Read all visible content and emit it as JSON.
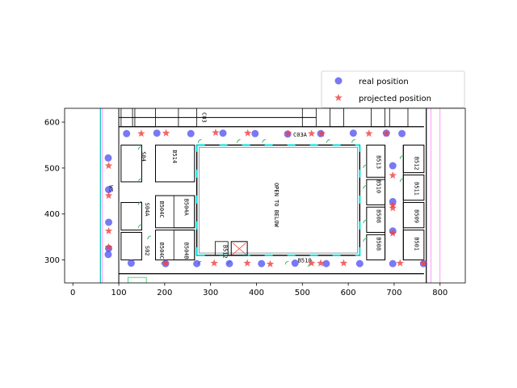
{
  "chart_data": {
    "type": "scatter",
    "title": "",
    "xlabel": "",
    "ylabel": "",
    "xlim": [
      -18,
      855
    ],
    "ylim": [
      250,
      630
    ],
    "xticks": [
      0,
      100,
      200,
      300,
      400,
      500,
      600,
      700,
      800
    ],
    "yticks": [
      300,
      400,
      500,
      600
    ],
    "grid": false,
    "legend": {
      "placement": "top-right",
      "outside": true
    },
    "background": "floor-plan",
    "colors": {
      "real": "#4040f0",
      "projected": "#f04040"
    },
    "series": [
      {
        "name": "real position",
        "marker": "circle",
        "points": [
          [
            117,
            575
          ],
          [
            183,
            576
          ],
          [
            257,
            575
          ],
          [
            327,
            576
          ],
          [
            397,
            575
          ],
          [
            468,
            574
          ],
          [
            540,
            575
          ],
          [
            611,
            576
          ],
          [
            683,
            576
          ],
          [
            717,
            575
          ],
          [
            77,
            522
          ],
          [
            78,
            453
          ],
          [
            78,
            382
          ],
          [
            78,
            325
          ],
          [
            77,
            312
          ],
          [
            127,
            293
          ],
          [
            202,
            292
          ],
          [
            270,
            292
          ],
          [
            341,
            292
          ],
          [
            411,
            292
          ],
          [
            484,
            293
          ],
          [
            552,
            292
          ],
          [
            625,
            292
          ],
          [
            697,
            292
          ],
          [
            764,
            292
          ],
          [
            697,
            505
          ],
          [
            697,
            427
          ],
          [
            697,
            363
          ]
        ]
      },
      {
        "name": "projected position",
        "marker": "star",
        "points": [
          [
            149,
            575
          ],
          [
            203,
            576
          ],
          [
            311,
            577
          ],
          [
            381,
            576
          ],
          [
            469,
            575
          ],
          [
            520,
            575
          ],
          [
            542,
            575
          ],
          [
            645,
            575
          ],
          [
            683,
            575
          ],
          [
            78,
            505
          ],
          [
            78,
            440
          ],
          [
            78,
            363
          ],
          [
            78,
            328
          ],
          [
            202,
            293
          ],
          [
            308,
            293
          ],
          [
            380,
            293
          ],
          [
            430,
            291
          ],
          [
            520,
            293
          ],
          [
            540,
            293
          ],
          [
            590,
            293
          ],
          [
            713,
            293
          ],
          [
            764,
            293
          ],
          [
            697,
            484
          ],
          [
            697,
            413
          ],
          [
            697,
            419
          ],
          [
            697,
            358
          ]
        ]
      }
    ],
    "floor_plan": {
      "room_labels": [
        {
          "text": "S04",
          "x": 150,
          "y": 525,
          "rot": 90
        },
        {
          "text": "B514",
          "x": 218,
          "y": 525,
          "rot": 90
        },
        {
          "text": "S04A",
          "x": 158,
          "y": 410,
          "rot": 90
        },
        {
          "text": "B504C",
          "x": 190,
          "y": 410,
          "rot": 90
        },
        {
          "text": "B504A",
          "x": 243,
          "y": 415,
          "rot": 90
        },
        {
          "text": "S02",
          "x": 158,
          "y": 320,
          "rot": 90
        },
        {
          "text": "B504C",
          "x": 190,
          "y": 320,
          "rot": 90
        },
        {
          "text": "B504B",
          "x": 243,
          "y": 320,
          "rot": 90
        },
        {
          "text": "B512",
          "x": 328,
          "y": 318,
          "rot": 90
        },
        {
          "text": "OPEN TO BELOW",
          "x": 440,
          "y": 420,
          "rot": 90
        },
        {
          "text": "B510",
          "x": 505,
          "y": 295,
          "rot": 0
        },
        {
          "text": "B513",
          "x": 662,
          "y": 513,
          "rot": 90
        },
        {
          "text": "B510",
          "x": 662,
          "y": 460,
          "rot": 90
        },
        {
          "text": "B508",
          "x": 662,
          "y": 395,
          "rot": 90
        },
        {
          "text": "B508",
          "x": 662,
          "y": 335,
          "rot": 90
        },
        {
          "text": "B512",
          "x": 745,
          "y": 510,
          "rot": 90
        },
        {
          "text": "B511",
          "x": 745,
          "y": 455,
          "rot": 90
        },
        {
          "text": "B509",
          "x": 745,
          "y": 395,
          "rot": 90
        },
        {
          "text": "B501",
          "x": 745,
          "y": 335,
          "rot": 90
        },
        {
          "text": "WS",
          "x": 79,
          "y": 455,
          "rot": 90
        },
        {
          "text": "C03",
          "x": 282,
          "y": 610,
          "rot": 90
        },
        {
          "text": "C03A",
          "x": 495,
          "y": 568,
          "rot": 0
        }
      ]
    }
  }
}
